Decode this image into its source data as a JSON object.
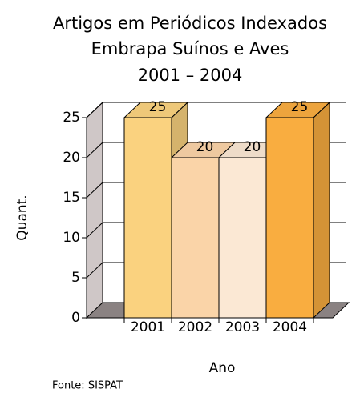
{
  "chart_data": {
    "type": "bar3d",
    "title": "Artigos em Periódicos Indexados",
    "subtitle": [
      "Embrapa Suínos e Aves",
      "2001 – 2004"
    ],
    "x_label": "Ano",
    "y_label": "Quant.",
    "note": "Fonte: SISPAT",
    "categories": [
      "2001",
      "2002",
      "2003",
      "2004"
    ],
    "values": [
      25,
      20,
      20,
      25
    ],
    "colors": [
      "#fad27f",
      "#fad4a8",
      "#fbe8d4",
      "#f9ad40"
    ],
    "ylim": [
      0,
      25
    ],
    "yticks": [
      0,
      5,
      10,
      15,
      20,
      25
    ],
    "grid": true
  }
}
